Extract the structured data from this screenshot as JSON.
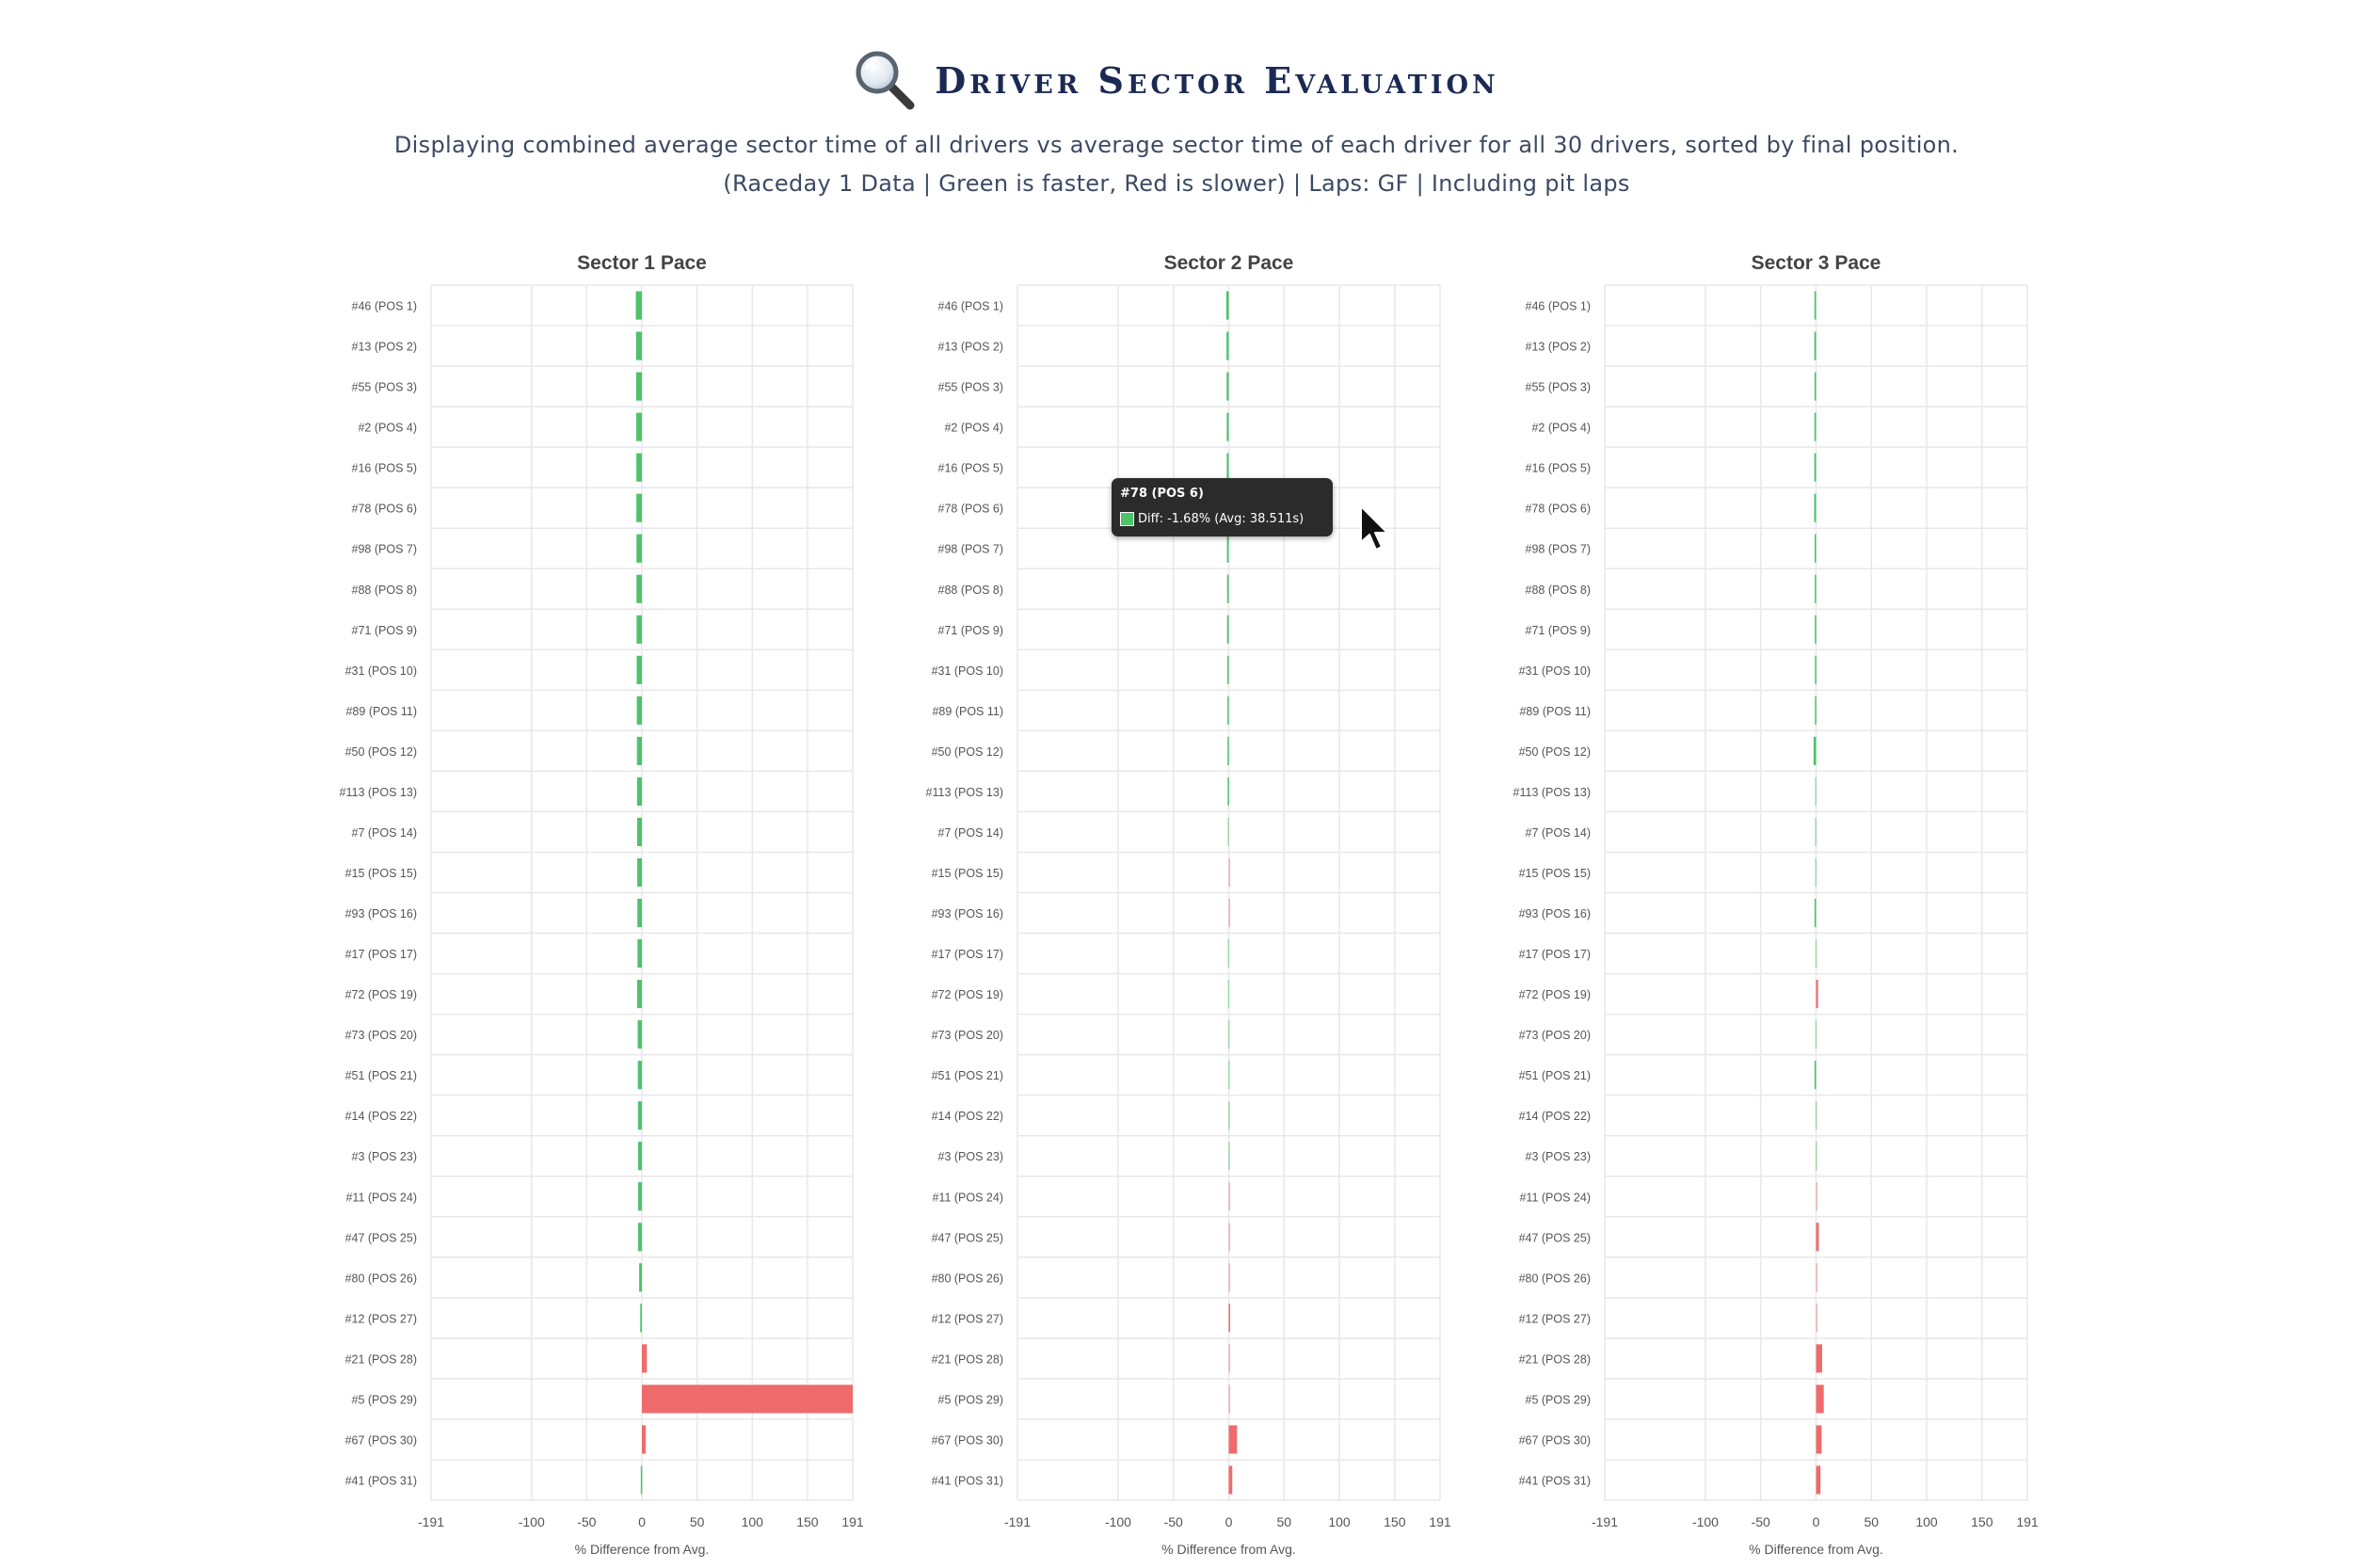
{
  "header": {
    "icon": "magnifying-glass-icon",
    "title": "Driver Sector Evaluation",
    "subtitle": "Displaying combined average sector time of all drivers vs average sector time of each driver for all 30 drivers, sorted by final position.",
    "subtitle2": "(Raceday 1 Data | Green is faster, Red is slower) | Laps: GF | Including pit laps"
  },
  "colors": {
    "faster": "#4cc46a",
    "slower": "#ef6b6b",
    "grid": "#e8e8e8",
    "text": "#555555",
    "title": "#1b2a52"
  },
  "tooltip": {
    "title": "#78 (POS 6)",
    "body": "Diff: -1.68% (Avg: 38.511s)"
  },
  "chart_data": [
    {
      "type": "bar",
      "orientation": "horizontal",
      "title": "Sector 1 Pace",
      "xlabel": "% Difference from Avg.",
      "xlim": [
        -191,
        191
      ],
      "xticks": [
        -191,
        -100,
        -50,
        0,
        50,
        100,
        150,
        191
      ],
      "categories": [
        "#46 (POS 1)",
        "#13 (POS 2)",
        "#55 (POS 3)",
        "#2 (POS 4)",
        "#16 (POS 5)",
        "#78 (POS 6)",
        "#98 (POS 7)",
        "#88 (POS 8)",
        "#71 (POS 9)",
        "#31 (POS 10)",
        "#89 (POS 11)",
        "#50 (POS 12)",
        "#113 (POS 13)",
        "#7 (POS 14)",
        "#15 (POS 15)",
        "#93 (POS 16)",
        "#17 (POS 17)",
        "#72 (POS 19)",
        "#73 (POS 20)",
        "#51 (POS 21)",
        "#14 (POS 22)",
        "#3 (POS 23)",
        "#11 (POS 24)",
        "#47 (POS 25)",
        "#80 (POS 26)",
        "#12 (POS 27)",
        "#21 (POS 28)",
        "#5 (POS 29)",
        "#67 (POS 30)",
        "#41 (POS 31)"
      ],
      "values": [
        -5.5,
        -5.3,
        -5.2,
        -5.1,
        -5.0,
        -5.0,
        -4.9,
        -4.9,
        -4.8,
        -4.7,
        -4.6,
        -4.5,
        -4.4,
        -4.3,
        -4.2,
        -4.1,
        -4.0,
        -4.3,
        -3.8,
        -3.7,
        -3.6,
        -3.5,
        -3.4,
        -3.5,
        -2.5,
        -1.5,
        4.5,
        191,
        3.5,
        -1.0
      ]
    },
    {
      "type": "bar",
      "orientation": "horizontal",
      "title": "Sector 2 Pace",
      "xlabel": "% Difference from Avg.",
      "xlim": [
        -191,
        191
      ],
      "xticks": [
        -191,
        -100,
        -50,
        0,
        50,
        100,
        150,
        191
      ],
      "categories": [
        "#46 (POS 1)",
        "#13 (POS 2)",
        "#55 (POS 3)",
        "#2 (POS 4)",
        "#16 (POS 5)",
        "#78 (POS 6)",
        "#98 (POS 7)",
        "#88 (POS 8)",
        "#71 (POS 9)",
        "#31 (POS 10)",
        "#89 (POS 11)",
        "#50 (POS 12)",
        "#113 (POS 13)",
        "#7 (POS 14)",
        "#15 (POS 15)",
        "#93 (POS 16)",
        "#17 (POS 17)",
        "#72 (POS 19)",
        "#73 (POS 20)",
        "#51 (POS 21)",
        "#14 (POS 22)",
        "#3 (POS 23)",
        "#11 (POS 24)",
        "#47 (POS 25)",
        "#80 (POS 26)",
        "#12 (POS 27)",
        "#21 (POS 28)",
        "#5 (POS 29)",
        "#67 (POS 30)",
        "#41 (POS 31)"
      ],
      "values": [
        -2.2,
        -2.0,
        -1.9,
        -1.8,
        -1.8,
        -1.68,
        -1.6,
        -1.5,
        -1.5,
        -1.3,
        -1.2,
        -1.1,
        -1.0,
        -0.9,
        0.8,
        0.9,
        -0.8,
        -0.7,
        -0.5,
        -0.4,
        -0.3,
        -0.2,
        0.6,
        0.6,
        0.7,
        1.3,
        0.8,
        0.9,
        7.5,
        3.2
      ]
    },
    {
      "type": "bar",
      "orientation": "horizontal",
      "title": "Sector 3 Pace",
      "xlabel": "% Difference from Avg.",
      "xlim": [
        -191,
        191
      ],
      "xticks": [
        -191,
        -100,
        -50,
        0,
        50,
        100,
        150,
        191
      ],
      "categories": [
        "#46 (POS 1)",
        "#13 (POS 2)",
        "#55 (POS 3)",
        "#2 (POS 4)",
        "#16 (POS 5)",
        "#78 (POS 6)",
        "#98 (POS 7)",
        "#88 (POS 8)",
        "#71 (POS 9)",
        "#31 (POS 10)",
        "#89 (POS 11)",
        "#50 (POS 12)",
        "#113 (POS 13)",
        "#7 (POS 14)",
        "#15 (POS 15)",
        "#93 (POS 16)",
        "#17 (POS 17)",
        "#72 (POS 19)",
        "#73 (POS 20)",
        "#51 (POS 21)",
        "#14 (POS 22)",
        "#3 (POS 23)",
        "#11 (POS 24)",
        "#47 (POS 25)",
        "#80 (POS 26)",
        "#12 (POS 27)",
        "#21 (POS 28)",
        "#5 (POS 29)",
        "#67 (POS 30)",
        "#41 (POS 31)"
      ],
      "values": [
        -1.5,
        -1.6,
        -1.4,
        -1.5,
        -1.6,
        -1.7,
        -1.3,
        -1.2,
        -1.1,
        -1.0,
        -1.0,
        -2.2,
        -0.9,
        -0.9,
        -0.8,
        -1.4,
        -0.6,
        1.8,
        -0.7,
        -1.4,
        -0.5,
        -0.4,
        0.4,
        2.5,
        0.5,
        0.6,
        5.5,
        7.0,
        5.0,
        4.0
      ]
    }
  ]
}
